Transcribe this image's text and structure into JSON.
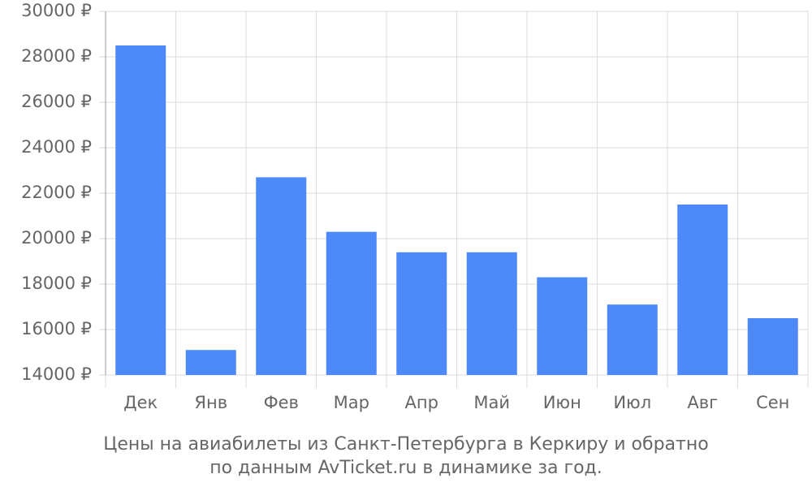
{
  "chart_data": {
    "type": "bar",
    "title": "Цены на авиабилеты из Санкт-Петербурга в Керкиру и обратно",
    "subtitle": "по данным AvTicket.ru в динамике за год.",
    "categories": [
      "Дек",
      "Янв",
      "Фев",
      "Мар",
      "Апр",
      "Май",
      "Июн",
      "Июл",
      "Авг",
      "Сен"
    ],
    "values": [
      28500,
      15100,
      22700,
      20300,
      19400,
      19400,
      18300,
      17100,
      21500,
      16500
    ],
    "color": "#4d89f9",
    "ylim": [
      14000,
      30000
    ],
    "yticks": [
      {
        "value": 14000,
        "label": "14000 ₽"
      },
      {
        "value": 16000,
        "label": "16000 ₽"
      },
      {
        "value": 18000,
        "label": "18000 ₽"
      },
      {
        "value": 20000,
        "label": "20000 ₽"
      },
      {
        "value": 22000,
        "label": "22000 ₽"
      },
      {
        "value": 24000,
        "label": "24000 ₽"
      },
      {
        "value": 26000,
        "label": "26000 ₽"
      },
      {
        "value": 28000,
        "label": "28000 ₽"
      },
      {
        "value": 30000,
        "label": "30000 ₽"
      }
    ],
    "grid": true
  }
}
